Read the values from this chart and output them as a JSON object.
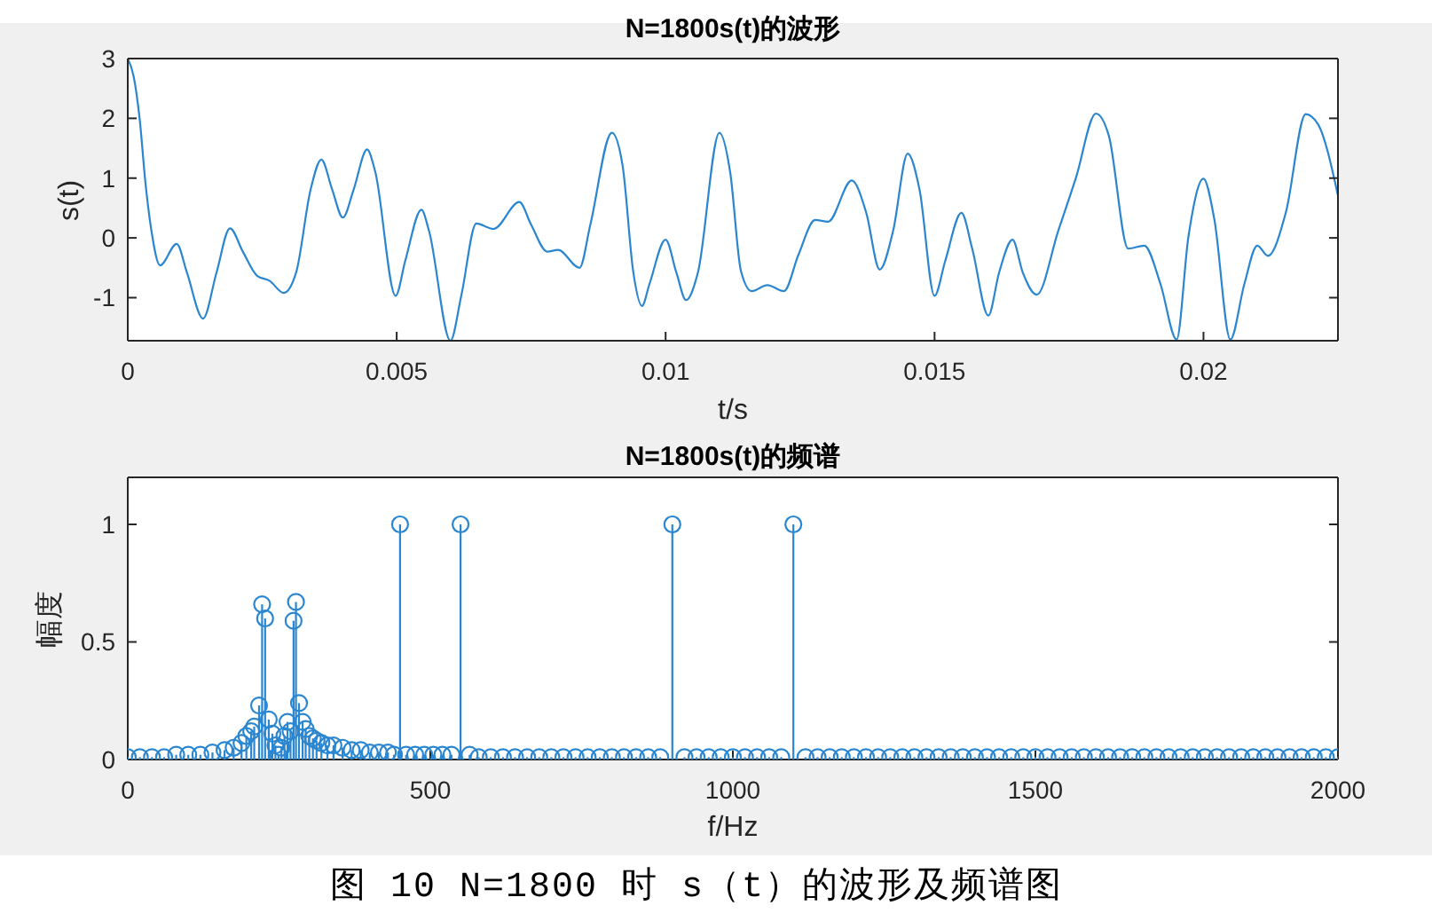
{
  "chart_data": [
    {
      "type": "line",
      "title": "N=1800s(t)的波形",
      "xlabel": "t/s",
      "ylabel": "s(t)",
      "x": [
        0,
        0.00011,
        0.00022,
        0.00033,
        0.00044,
        0.0006,
        0.00091,
        0.0011,
        0.0014,
        0.00165,
        0.0019,
        0.00214,
        0.0024,
        0.00264,
        0.0029,
        0.00313,
        0.0034,
        0.0036,
        0.0038,
        0.004,
        0.0042,
        0.00445,
        0.0046,
        0.00498,
        0.00516,
        0.00546,
        0.0056,
        0.006,
        0.0062,
        0.00648,
        0.0068,
        0.00728,
        0.0075,
        0.0078,
        0.008,
        0.0084,
        0.0086,
        0.009,
        0.0092,
        0.0094,
        0.00956,
        0.0097,
        0.01,
        0.0102,
        0.01038,
        0.0106,
        0.011,
        0.0112,
        0.0114,
        0.0116,
        0.01189,
        0.0122,
        0.01247,
        0.01278,
        0.01302,
        0.01346,
        0.01373,
        0.01398,
        0.01423,
        0.0145,
        0.01472,
        0.015,
        0.0152,
        0.0155,
        0.0157,
        0.016,
        0.0162,
        0.01645,
        0.01664,
        0.0169,
        0.0173,
        0.01763,
        0.018,
        0.01824,
        0.0186,
        0.0189,
        0.0192,
        0.0195,
        0.01972,
        0.02,
        0.0202,
        0.0205,
        0.02076,
        0.021,
        0.0212,
        0.02153,
        0.0219,
        0.02213,
        0.0225
      ],
      "series": [
        {
          "color": "#2a86d0",
          "values": [
            3.0,
            2.7,
            2.0,
            0.91,
            0.12,
            -0.46,
            -0.1,
            -0.58,
            -1.35,
            -0.58,
            0.16,
            -0.23,
            -0.63,
            -0.72,
            -0.92,
            -0.58,
            0.81,
            1.31,
            0.81,
            0.34,
            0.81,
            1.48,
            1.11,
            -0.97,
            -0.38,
            0.47,
            0.12,
            -1.72,
            -0.97,
            0.24,
            0.15,
            0.6,
            0.22,
            -0.23,
            -0.2,
            -0.5,
            0.22,
            1.76,
            1.21,
            -0.58,
            -1.14,
            -0.77,
            -0.03,
            -0.58,
            -1.04,
            -0.58,
            1.76,
            1.1,
            -0.55,
            -0.89,
            -0.79,
            -0.89,
            -0.28,
            0.3,
            0.27,
            0.96,
            0.42,
            -0.53,
            0.12,
            1.41,
            0.81,
            -0.97,
            -0.38,
            0.42,
            -0.18,
            -1.3,
            -0.58,
            -0.03,
            -0.58,
            -0.95,
            0.12,
            1.01,
            2.08,
            1.71,
            -0.18,
            -0.13,
            -0.77,
            -1.7,
            0.02,
            0.99,
            0.32,
            -1.7,
            -0.77,
            -0.13,
            -0.3,
            0.42,
            2.07,
            1.9,
            0.71
          ]
        }
      ],
      "xlim": [
        0,
        0.0225
      ],
      "xticks": [
        0,
        0.005,
        0.01,
        0.015,
        0.02
      ],
      "ylim": [
        -1.72,
        3
      ],
      "yticks": [
        -1,
        0,
        1,
        2,
        3
      ]
    },
    {
      "type": "lollipop",
      "title": "N=1800s(t)的频谱",
      "xlabel": "f/Hz",
      "ylabel": "幅度",
      "x": [
        0,
        20,
        40,
        60,
        80,
        100,
        120,
        140,
        160,
        175,
        188,
        196,
        204,
        209,
        217,
        222,
        227,
        233,
        239,
        244,
        249,
        254,
        259,
        264,
        269,
        274,
        278,
        283,
        289,
        294,
        300,
        306,
        312,
        320,
        330,
        340,
        355,
        370,
        385,
        400,
        415,
        430,
        440,
        450,
        460,
        475,
        490,
        505,
        520,
        535,
        550,
        565,
        580,
        600,
        620,
        640,
        660,
        680,
        700,
        720,
        740,
        760,
        780,
        800,
        820,
        840,
        860,
        880,
        900,
        920,
        940,
        960,
        980,
        1000,
        1020,
        1040,
        1060,
        1080,
        1100,
        1120,
        1140,
        1160,
        1180,
        1200,
        1220,
        1240,
        1260,
        1280,
        1300,
        1320,
        1340,
        1360,
        1380,
        1400,
        1420,
        1440,
        1460,
        1480,
        1500,
        1520,
        1540,
        1560,
        1580,
        1600,
        1620,
        1640,
        1660,
        1680,
        1700,
        1720,
        1740,
        1760,
        1780,
        1800,
        1820,
        1840,
        1860,
        1880,
        1900,
        1920,
        1940,
        1960,
        1980,
        2000
      ],
      "series": [
        {
          "color": "#2a86d0",
          "values": [
            0.01,
            0.01,
            0.01,
            0.01,
            0.02,
            0.02,
            0.02,
            0.03,
            0.04,
            0.05,
            0.07,
            0.1,
            0.12,
            0.14,
            0.23,
            0.66,
            0.6,
            0.17,
            0.11,
            0.06,
            0.02,
            0.05,
            0.1,
            0.16,
            0.12,
            0.59,
            0.67,
            0.24,
            0.16,
            0.13,
            0.1,
            0.09,
            0.08,
            0.07,
            0.06,
            0.06,
            0.05,
            0.04,
            0.04,
            0.03,
            0.03,
            0.03,
            0.02,
            1,
            0.02,
            0.02,
            0.02,
            0.02,
            0.02,
            0.02,
            1,
            0.02,
            0.01,
            0.01,
            0.01,
            0.01,
            0.01,
            0.01,
            0.01,
            0.01,
            0.01,
            0.01,
            0.01,
            0.01,
            0.01,
            0.01,
            0.01,
            0.01,
            1,
            0.01,
            0.01,
            0.01,
            0.01,
            0.01,
            0.01,
            0.01,
            0.01,
            0.01,
            1,
            0.01,
            0.01,
            0.01,
            0.01,
            0.01,
            0.01,
            0.01,
            0.01,
            0.01,
            0.01,
            0.01,
            0.01,
            0.01,
            0.01,
            0.01,
            0.01,
            0.01,
            0.01,
            0.01,
            0.01,
            0.01,
            0.01,
            0.01,
            0.01,
            0.01,
            0.01,
            0.01,
            0.01,
            0.01,
            0.01,
            0.01,
            0.01,
            0.01,
            0.01,
            0.01,
            0.01,
            0.01,
            0.01,
            0.01,
            0.01,
            0.01,
            0.01,
            0.01,
            0.01,
            0.01
          ]
        }
      ],
      "xlim": [
        0,
        2000
      ],
      "xticks": [
        0,
        500,
        1000,
        1500,
        2000
      ],
      "ylim": [
        0,
        1.2
      ],
      "yticks": [
        0,
        0.5,
        1
      ],
      "marker": "circle",
      "annotations": [
        "图 10 N=1800 时 s（t）的波形及频谱图"
      ]
    }
  ]
}
